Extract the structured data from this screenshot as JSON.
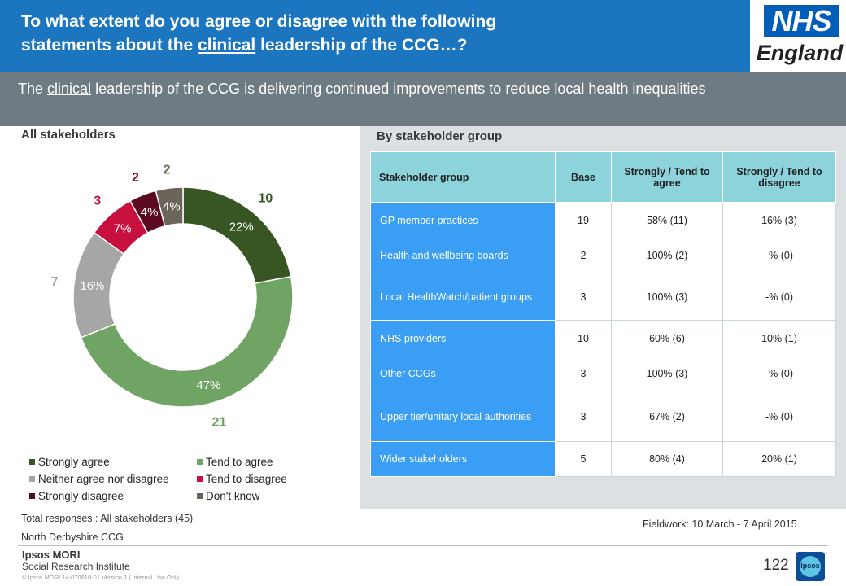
{
  "header": {
    "title_line1": "To what extent do you agree or disagree with the following",
    "title_line2_pre": "statements about the ",
    "title_line2_u": "clinical",
    "title_line2_post": " leadership of the CCG…?",
    "logo_top": "NHS",
    "logo_bottom": "England"
  },
  "subtitle": {
    "pre": "The ",
    "u": "clinical",
    "post": " leadership of the CCG is delivering continued improvements to reduce local health inequalities"
  },
  "left_panel": {
    "label": "All stakeholders"
  },
  "right_panel": {
    "label": "By stakeholder group"
  },
  "chart_data": {
    "type": "pie",
    "variant": "donut",
    "categories": [
      "Strongly agree",
      "Tend to agree",
      "Neither agree nor disagree",
      "Tend to disagree",
      "Strongly disagree",
      "Don't know"
    ],
    "values": [
      22,
      47,
      16,
      7,
      4,
      4
    ],
    "value_labels": [
      "22%",
      "47%",
      "16%",
      "7%",
      "4%",
      "4%"
    ],
    "counts": [
      10,
      21,
      7,
      3,
      2,
      2
    ],
    "colors": [
      "#375623",
      "#70a464",
      "#a6a6a6",
      "#c8103f",
      "#5c0a20",
      "#6b6458"
    ],
    "count_colors": [
      "#375623",
      "#70a464",
      "#a6a6a6",
      "#c8103f",
      "#7a1024",
      "#6b6458"
    ],
    "legend_placement": "bottom"
  },
  "table": {
    "headers": [
      "Stakeholder group",
      "Base",
      "Strongly / Tend to agree",
      "Strongly / Tend to disagree"
    ],
    "rows": [
      [
        "GP member practices",
        "19",
        "58% (11)",
        "16% (3)"
      ],
      [
        "Health and wellbeing boards",
        "2",
        "100% (2)",
        "-% (0)"
      ],
      [
        "Local HealthWatch/patient groups",
        "3",
        "100% (3)",
        "-% (0)"
      ],
      [
        "NHS providers",
        "10",
        "60% (6)",
        "10% (1)"
      ],
      [
        "Other CCGs",
        "3",
        "100% (3)",
        "-% (0)"
      ],
      [
        "Upper tier/unitary local authorities",
        "3",
        "67% (2)",
        "-% (0)"
      ],
      [
        "Wider stakeholders",
        "5",
        "80% (4)",
        "20% (1)"
      ]
    ]
  },
  "footer": {
    "total": "Total responses : All stakeholders (45)",
    "ccg": "North Derbyshire CCG",
    "fieldwork": "Fieldwork: 10 March - 7 April 2015",
    "org_line1": "Ipsos MORI",
    "org_line2": "Social Research Institute",
    "copyright": "© Ipsos MORI     14-070610-01  Version 1 | Internal Use Only",
    "page_number": "122",
    "ipsos_logo_text": "Ipsos"
  }
}
